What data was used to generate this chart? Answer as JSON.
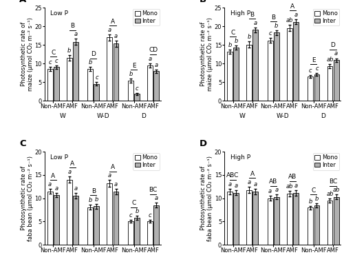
{
  "panels": [
    {
      "label": "A",
      "title": "Low P",
      "ylabel": "Photosynthetic rate of\nmaize (μmol CO₂ m⁻² s⁻¹)",
      "ylim": [
        0,
        25
      ],
      "yticks": [
        0,
        5,
        10,
        15,
        20,
        25
      ],
      "bars": [
        8.5,
        9.0,
        11.5,
        15.8,
        8.5,
        4.5,
        17.0,
        15.3,
        5.4,
        1.8,
        9.5,
        7.9
      ],
      "errors": [
        0.6,
        0.5,
        0.8,
        0.8,
        0.5,
        0.5,
        0.8,
        0.8,
        0.5,
        0.3,
        0.6,
        0.5
      ],
      "upper_letter_labels": [
        "C",
        "B",
        "D",
        "A",
        "E",
        "CD"
      ],
      "lower_letters": [
        "c",
        "c",
        "b",
        "a",
        "b",
        "c",
        "a",
        "a",
        "b",
        "c",
        "a",
        "a"
      ]
    },
    {
      "label": "B",
      "title": "High P",
      "ylabel": "Photosynthetic rate of\nmaize (μmol CO₂ m⁻² s⁻¹)",
      "ylim": [
        0,
        25
      ],
      "yticks": [
        0,
        5,
        10,
        15,
        20,
        25
      ],
      "bars": [
        13.2,
        14.3,
        15.1,
        19.0,
        16.2,
        18.3,
        19.5,
        21.2,
        6.5,
        7.0,
        9.3,
        10.9
      ],
      "errors": [
        0.6,
        0.5,
        0.8,
        0.7,
        0.7,
        0.6,
        0.8,
        0.7,
        0.4,
        0.4,
        0.6,
        0.5
      ],
      "upper_letter_labels": [
        "C",
        "B",
        "B",
        "A",
        "E",
        "D"
      ],
      "lower_letters": [
        "b",
        "b",
        "b",
        "a",
        "c",
        "b",
        "ab",
        "a",
        "c",
        "c",
        "ab",
        "a"
      ]
    },
    {
      "label": "C",
      "title": "Low P",
      "ylabel": "Photosynthetic rate of\nfaba bean (μmol CO₂ m⁻² s⁻¹)",
      "ylim": [
        0,
        20
      ],
      "yticks": [
        0,
        5,
        10,
        15,
        20
      ],
      "bars": [
        11.5,
        10.7,
        14.0,
        10.6,
        8.1,
        8.3,
        13.2,
        11.5,
        5.1,
        5.8,
        5.1,
        8.5
      ],
      "errors": [
        0.5,
        0.5,
        0.7,
        0.6,
        0.5,
        0.5,
        0.7,
        0.6,
        0.3,
        0.4,
        0.3,
        0.5
      ],
      "upper_letter_labels": [
        "A",
        "A",
        "B",
        "A",
        "C",
        "BC"
      ],
      "lower_letters": [
        "a",
        "a",
        "a",
        "a",
        "b",
        "b",
        "a",
        "a",
        "c",
        "b",
        "c",
        "a"
      ]
    },
    {
      "label": "D",
      "title": "High P",
      "ylabel": "Photosynthetic rate of\nfaba bean (μmol CO₂ m⁻² s⁻¹)",
      "ylim": [
        0,
        20
      ],
      "yticks": [
        0,
        5,
        10,
        15,
        20
      ],
      "bars": [
        11.5,
        11.2,
        11.8,
        11.5,
        10.0,
        10.3,
        11.0,
        11.2,
        8.0,
        8.5,
        9.5,
        10.3
      ],
      "errors": [
        0.6,
        0.5,
        0.7,
        0.6,
        0.5,
        0.5,
        0.6,
        0.6,
        0.4,
        0.4,
        0.5,
        0.5
      ],
      "upper_letter_labels": [
        "ABC",
        "A",
        "AB",
        "AB",
        "C",
        "BC"
      ],
      "lower_letters": [
        "a",
        "a",
        "a",
        "a",
        "a",
        "a",
        "ab",
        "a",
        "b",
        "b",
        "ab",
        "ab"
      ]
    }
  ],
  "bar_colors": [
    "white",
    "#b0b0b0"
  ],
  "bar_edgecolor": "black",
  "water_labels": [
    "W",
    "W-D",
    "D"
  ],
  "bar_width": 0.32,
  "fontsize": 6.5
}
